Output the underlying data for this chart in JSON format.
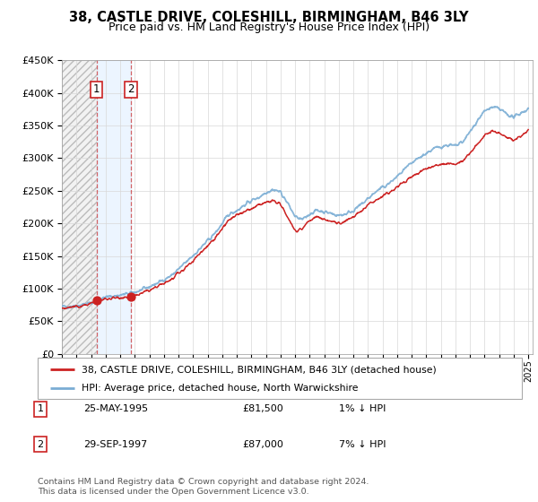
{
  "title": "38, CASTLE DRIVE, COLESHILL, BIRMINGHAM, B46 3LY",
  "subtitle": "Price paid vs. HM Land Registry's House Price Index (HPI)",
  "hpi_color": "#7aadd4",
  "price_color": "#cc2222",
  "legend_line1": "38, CASTLE DRIVE, COLESHILL, BIRMINGHAM, B46 3LY (detached house)",
  "legend_line2": "HPI: Average price, detached house, North Warwickshire",
  "table_rows": [
    {
      "num": "1",
      "date": "25-MAY-1995",
      "price": "£81,500",
      "hpi": "1% ↓ HPI"
    },
    {
      "num": "2",
      "date": "29-SEP-1997",
      "price": "£87,000",
      "hpi": "7% ↓ HPI"
    }
  ],
  "footer": "Contains HM Land Registry data © Crown copyright and database right 2024.\nThis data is licensed under the Open Government Licence v3.0.",
  "ylim": [
    0,
    450000
  ],
  "yticks": [
    0,
    50000,
    100000,
    150000,
    200000,
    250000,
    300000,
    350000,
    400000,
    450000
  ],
  "xlim_start": 1993.0,
  "xlim_end": 2025.3,
  "p1_x": 1995.37,
  "p1_y": 81500,
  "p2_x": 1997.74,
  "p2_y": 87000,
  "hpi_keypoints": [
    [
      1993.0,
      72000
    ],
    [
      1994.0,
      74000
    ],
    [
      1995.0,
      78000
    ],
    [
      1995.5,
      83000
    ],
    [
      1996.0,
      87000
    ],
    [
      1997.0,
      90000
    ],
    [
      1997.75,
      93000
    ],
    [
      1998.5,
      98000
    ],
    [
      1999.5,
      108000
    ],
    [
      2000.5,
      120000
    ],
    [
      2001.5,
      140000
    ],
    [
      2002.5,
      162000
    ],
    [
      2003.5,
      185000
    ],
    [
      2004.0,
      200000
    ],
    [
      2004.5,
      215000
    ],
    [
      2005.0,
      220000
    ],
    [
      2005.5,
      228000
    ],
    [
      2006.0,
      235000
    ],
    [
      2006.5,
      240000
    ],
    [
      2007.0,
      248000
    ],
    [
      2007.5,
      252000
    ],
    [
      2008.0,
      248000
    ],
    [
      2008.5,
      230000
    ],
    [
      2009.0,
      210000
    ],
    [
      2009.5,
      205000
    ],
    [
      2010.0,
      215000
    ],
    [
      2010.5,
      220000
    ],
    [
      2011.0,
      218000
    ],
    [
      2011.5,
      215000
    ],
    [
      2012.0,
      212000
    ],
    [
      2012.5,
      215000
    ],
    [
      2013.0,
      220000
    ],
    [
      2013.5,
      228000
    ],
    [
      2014.0,
      238000
    ],
    [
      2014.5,
      248000
    ],
    [
      2015.0,
      255000
    ],
    [
      2015.5,
      262000
    ],
    [
      2016.0,
      272000
    ],
    [
      2016.5,
      282000
    ],
    [
      2017.0,
      292000
    ],
    [
      2017.5,
      300000
    ],
    [
      2018.0,
      308000
    ],
    [
      2018.5,
      314000
    ],
    [
      2019.0,
      318000
    ],
    [
      2019.5,
      320000
    ],
    [
      2020.0,
      318000
    ],
    [
      2020.5,
      325000
    ],
    [
      2021.0,
      340000
    ],
    [
      2021.5,
      358000
    ],
    [
      2022.0,
      372000
    ],
    [
      2022.5,
      378000
    ],
    [
      2023.0,
      375000
    ],
    [
      2023.5,
      368000
    ],
    [
      2024.0,
      362000
    ],
    [
      2024.5,
      370000
    ],
    [
      2025.0,
      375000
    ]
  ],
  "price_keypoints": [
    [
      1993.0,
      70000
    ],
    [
      1994.0,
      72000
    ],
    [
      1995.0,
      77000
    ],
    [
      1995.5,
      81500
    ],
    [
      1996.0,
      84000
    ],
    [
      1997.0,
      87000
    ],
    [
      1997.75,
      87000
    ],
    [
      1998.5,
      93000
    ],
    [
      1999.5,
      102000
    ],
    [
      2000.5,
      114000
    ],
    [
      2001.5,
      132000
    ],
    [
      2002.5,
      155000
    ],
    [
      2003.5,
      178000
    ],
    [
      2004.0,
      192000
    ],
    [
      2004.5,
      206000
    ],
    [
      2005.0,
      212000
    ],
    [
      2005.5,
      218000
    ],
    [
      2006.0,
      222000
    ],
    [
      2006.5,
      228000
    ],
    [
      2007.0,
      232000
    ],
    [
      2007.5,
      235000
    ],
    [
      2008.0,
      228000
    ],
    [
      2008.5,
      210000
    ],
    [
      2009.0,
      188000
    ],
    [
      2009.5,
      193000
    ],
    [
      2010.0,
      205000
    ],
    [
      2010.5,
      210000
    ],
    [
      2011.0,
      206000
    ],
    [
      2011.5,
      203000
    ],
    [
      2012.0,
      200000
    ],
    [
      2012.5,
      204000
    ],
    [
      2013.0,
      210000
    ],
    [
      2013.5,
      218000
    ],
    [
      2014.0,
      228000
    ],
    [
      2014.5,
      236000
    ],
    [
      2015.0,
      242000
    ],
    [
      2015.5,
      248000
    ],
    [
      2016.0,
      256000
    ],
    [
      2016.5,
      264000
    ],
    [
      2017.0,
      272000
    ],
    [
      2017.5,
      278000
    ],
    [
      2018.0,
      284000
    ],
    [
      2018.5,
      288000
    ],
    [
      2019.0,
      290000
    ],
    [
      2019.5,
      292000
    ],
    [
      2020.0,
      290000
    ],
    [
      2020.5,
      296000
    ],
    [
      2021.0,
      308000
    ],
    [
      2021.5,
      322000
    ],
    [
      2022.0,
      335000
    ],
    [
      2022.5,
      340000
    ],
    [
      2023.0,
      338000
    ],
    [
      2023.5,
      332000
    ],
    [
      2024.0,
      328000
    ],
    [
      2024.5,
      334000
    ],
    [
      2025.0,
      345000
    ]
  ]
}
